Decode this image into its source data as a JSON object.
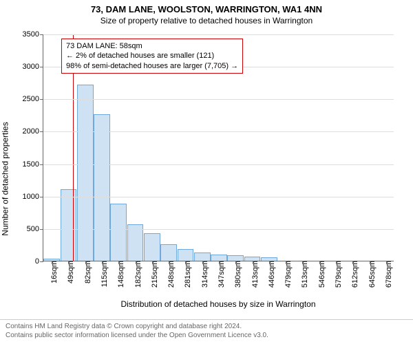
{
  "title": "73, DAM LANE, WOOLSTON, WARRINGTON, WA1 4NN",
  "subtitle": "Size of property relative to detached houses in Warrington",
  "y_label": "Number of detached properties",
  "x_label": "Distribution of detached houses by size in Warrington",
  "chart": {
    "type": "bar",
    "background_color": "#ffffff",
    "grid_color": "#dddddd",
    "axis_color": "#666666",
    "bar_fill": "#cfe2f3",
    "bar_border": "#6fa8dc",
    "marker_color": "#cc0000",
    "y_max": 3500,
    "y_tick_step": 500,
    "y_ticks": [
      0,
      500,
      1000,
      1500,
      2000,
      2500,
      3000,
      3500
    ],
    "x_tick_labels": [
      "16sqm",
      "49sqm",
      "82sqm",
      "115sqm",
      "148sqm",
      "182sqm",
      "215sqm",
      "248sqm",
      "281sqm",
      "314sqm",
      "347sqm",
      "380sqm",
      "413sqm",
      "446sqm",
      "479sqm",
      "513sqm",
      "546sqm",
      "579sqm",
      "612sqm",
      "645sqm",
      "678sqm"
    ],
    "values": [
      30,
      1100,
      2720,
      2260,
      880,
      560,
      420,
      260,
      180,
      130,
      100,
      80,
      60,
      50,
      0,
      0,
      0,
      0,
      0,
      0,
      0
    ],
    "marker_value_sqm": 58,
    "x_domain_min": 16,
    "x_domain_max": 678
  },
  "annotation": {
    "line1": "73 DAM LANE: 58sqm",
    "line2": "← 2% of detached houses are smaller (121)",
    "line3": "98% of semi-detached houses are larger (7,705) →",
    "border_color": "#cc0000"
  },
  "footer": {
    "line1": "Contains HM Land Registry data © Crown copyright and database right 2024.",
    "line2": "Contains public sector information licensed under the Open Government Licence v3.0."
  }
}
